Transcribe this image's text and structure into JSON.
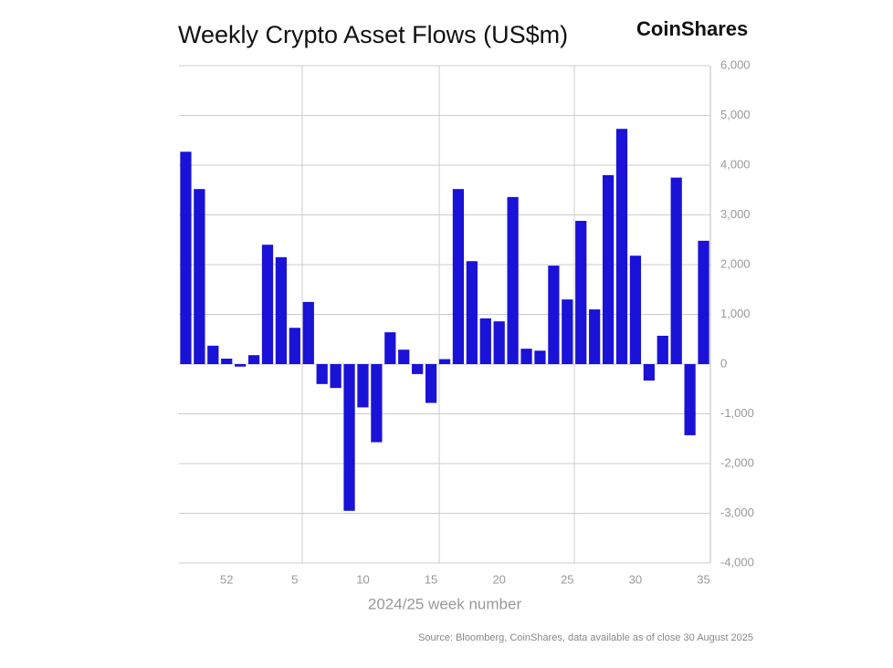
{
  "chart_data": {
    "type": "bar",
    "title": "Weekly Crypto Asset Flows (US$m)",
    "brand": "CoinShares",
    "x_label": "2024/25 week number",
    "source": "Source: Bloomberg, CoinShares, data available as of close 30 August 2025",
    "categories": [
      null,
      null,
      null,
      "52",
      null,
      null,
      null,
      null,
      "5",
      null,
      null,
      null,
      null,
      "10",
      null,
      null,
      null,
      null,
      "15",
      null,
      null,
      null,
      null,
      "20",
      null,
      null,
      null,
      null,
      "25",
      null,
      null,
      null,
      null,
      "30",
      null,
      null,
      null,
      null,
      "35"
    ],
    "values": [
      4270,
      3520,
      370,
      110,
      -50,
      180,
      2400,
      2150,
      730,
      1250,
      -400,
      -480,
      -2950,
      -870,
      -1570,
      640,
      290,
      -200,
      -780,
      100,
      3520,
      2070,
      920,
      860,
      3360,
      310,
      270,
      1980,
      1300,
      2880,
      1100,
      3800,
      4730,
      2180,
      -330,
      570,
      3750,
      -1430,
      2480
    ],
    "color": "#1a12d6",
    "ylim": [
      -4000,
      6000
    ],
    "yticks": [
      {
        "value": -4000,
        "label": "-4,000"
      },
      {
        "value": -3000,
        "label": "-3,000"
      },
      {
        "value": -2000,
        "label": "-2,000"
      },
      {
        "value": -1000,
        "label": "-1,000"
      },
      0,
      {
        "value": 1000,
        "label": "1,000"
      },
      {
        "value": 2000,
        "label": "2,000"
      },
      {
        "value": 3000,
        "label": "3,000"
      },
      {
        "value": 4000,
        "label": "4,000"
      },
      {
        "value": 5000,
        "label": "5,000"
      },
      {
        "value": 6000,
        "label": "6,000"
      }
    ],
    "grid": true
  }
}
